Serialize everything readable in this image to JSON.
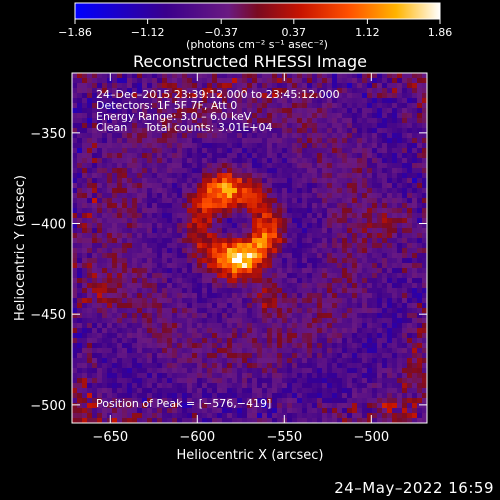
{
  "chart_data": {
    "type": "heatmap",
    "title": "Reconstructed RHESSI Image",
    "xlabel": "Heliocentric X (arcsec)",
    "ylabel": "Heliocentric Y (arcsec)",
    "xlim": [
      -672,
      -468
    ],
    "ylim": [
      -510,
      -317
    ],
    "x_ticks": [
      -650,
      -600,
      -550,
      -500
    ],
    "y_ticks": [
      -350,
      -400,
      -450,
      -500
    ],
    "x_tick_labels": [
      "−650",
      "−600",
      "−550",
      "−500"
    ],
    "y_tick_labels": [
      "−350",
      "−400",
      "−450",
      "−500"
    ],
    "colorbar": {
      "min": -1.86,
      "max": 1.86,
      "tick_values": [
        -1.86,
        -1.12,
        -0.37,
        0.37,
        1.12,
        1.86
      ],
      "tick_labels": [
        "−1.86",
        "−1.12",
        "−0.37",
        "0.37",
        "1.12",
        "1.86"
      ],
      "unit_label": "(photons cm⁻² s⁻¹ asec⁻²)"
    },
    "annotations": [
      "24–Dec–2015 23:39:12.000 to 23:45:12.000",
      "Detectors: 1F 5F 7F, Att 0",
      "Energy Range: 3.0 – 6.0 keV",
      "Clean     Total counts: 3.01E+04"
    ],
    "peak_label": "Position of Peak = [−576,−419]",
    "peak_position": [
      -576,
      -419
    ],
    "features": [
      {
        "type": "ring",
        "center": [
          -580,
          -401
        ],
        "radius": 20,
        "width": 7,
        "amplitude": 0.9
      },
      {
        "type": "blob",
        "center": [
          -585,
          -382
        ],
        "sigma": 9,
        "amplitude": 1.0
      },
      {
        "type": "blob",
        "center": [
          -576,
          -419
        ],
        "sigma": 9,
        "amplitude": 1.5
      },
      {
        "type": "blob",
        "center": [
          -558,
          -408
        ],
        "sigma": 7,
        "amplitude": 0.6
      },
      {
        "type": "blob",
        "center": [
          -560,
          -440
        ],
        "sigma": 7,
        "amplitude": 0.9
      },
      {
        "type": "blob",
        "center": [
          -655,
          -438
        ],
        "sigma": 8,
        "amplitude": 0.6
      },
      {
        "type": "blob",
        "center": [
          -490,
          -400
        ],
        "sigma": 8,
        "amplitude": 0.5
      }
    ]
  },
  "footer": {
    "date": "24–May–2022 16:59"
  }
}
